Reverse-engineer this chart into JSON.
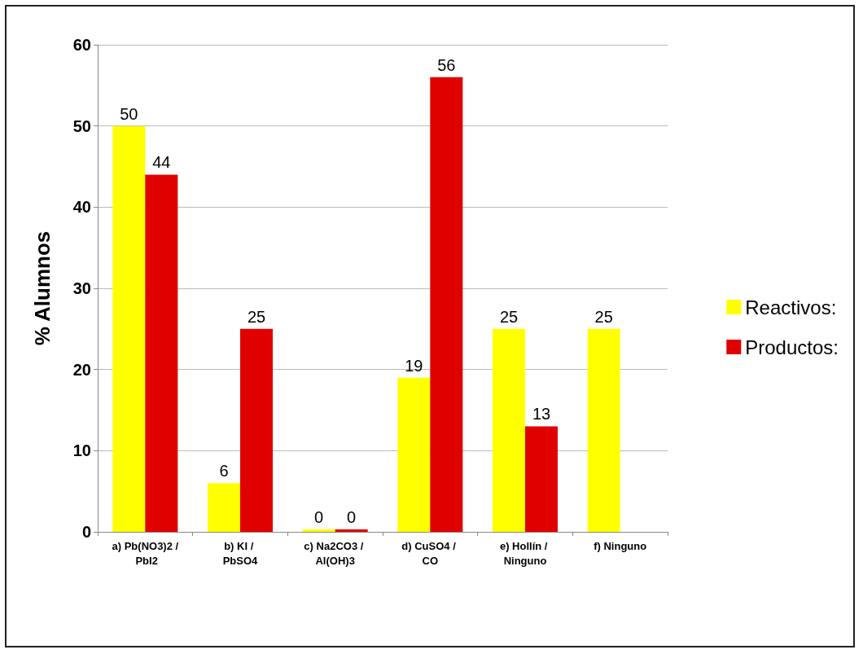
{
  "chart_data": {
    "type": "bar",
    "ylabel": "% Alumnos",
    "categories": [
      "a) Pb(NO3)2 / PbI2",
      "b) KI / PbSO4",
      "c) Na2CO3 / Al(OH)3",
      "d) CuSO4 / CO",
      "e) Hollín / Ninguno",
      "f) Ninguno"
    ],
    "series": [
      {
        "name": "Reactivos:",
        "color": "#ffff00",
        "values": [
          50,
          6,
          0,
          19,
          25,
          25
        ]
      },
      {
        "name": "Productos:",
        "color": "#e00000",
        "values": [
          44,
          25,
          0,
          56,
          13,
          null
        ]
      }
    ],
    "ylim": [
      0,
      60
    ],
    "yticks": [
      0,
      10,
      20,
      30,
      40,
      50,
      60
    ],
    "grid": "y",
    "legend": "right",
    "data_labels": true
  }
}
